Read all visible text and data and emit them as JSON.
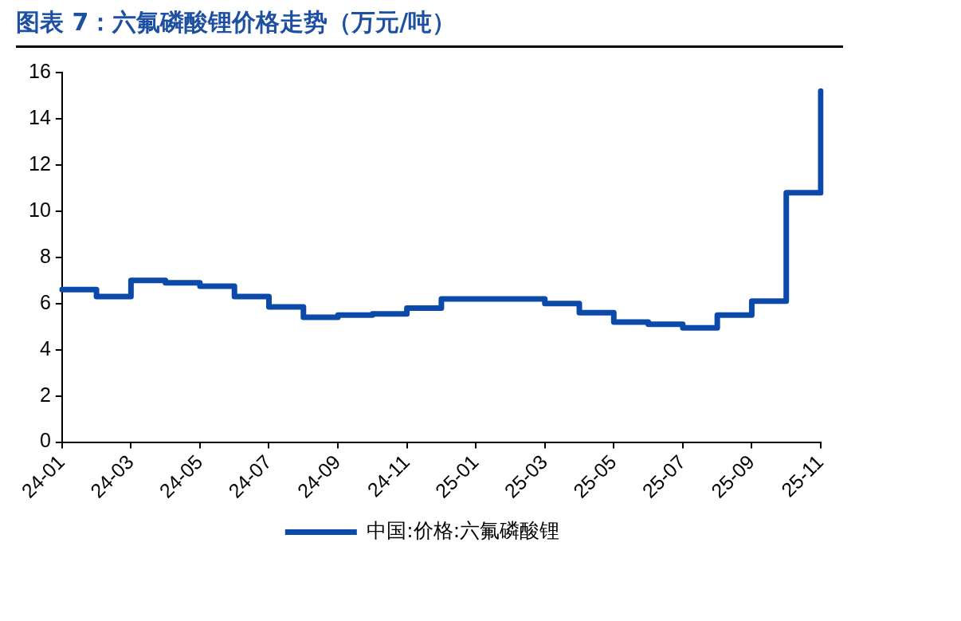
{
  "chart_data": {
    "type": "step",
    "title": "图表 7：六氟磷酸锂价格走势（万元/吨）",
    "categories": [
      "24-01",
      null,
      "24-03",
      null,
      "24-05",
      null,
      "24-07",
      null,
      "24-09",
      null,
      "24-11",
      null,
      "25-01",
      null,
      "25-03",
      null,
      "25-05",
      null,
      "25-07",
      null,
      "25-09",
      null,
      "25-11"
    ],
    "series": [
      {
        "name": "中国:价格:六氟磷酸锂",
        "color": "#0b4aa8",
        "values": [
          6.6,
          6.3,
          7.0,
          6.9,
          6.75,
          6.3,
          5.85,
          5.4,
          5.5,
          5.55,
          5.8,
          6.2,
          6.2,
          6.2,
          6.0,
          5.6,
          5.2,
          5.1,
          4.95,
          5.5,
          6.1,
          10.8,
          15.2
        ]
      }
    ],
    "ylim": [
      0,
      16
    ],
    "yticks": [
      0,
      2,
      4,
      6,
      8,
      10,
      12,
      14,
      16
    ],
    "legend": "bottom",
    "marker": "none",
    "line_style": "solid"
  }
}
